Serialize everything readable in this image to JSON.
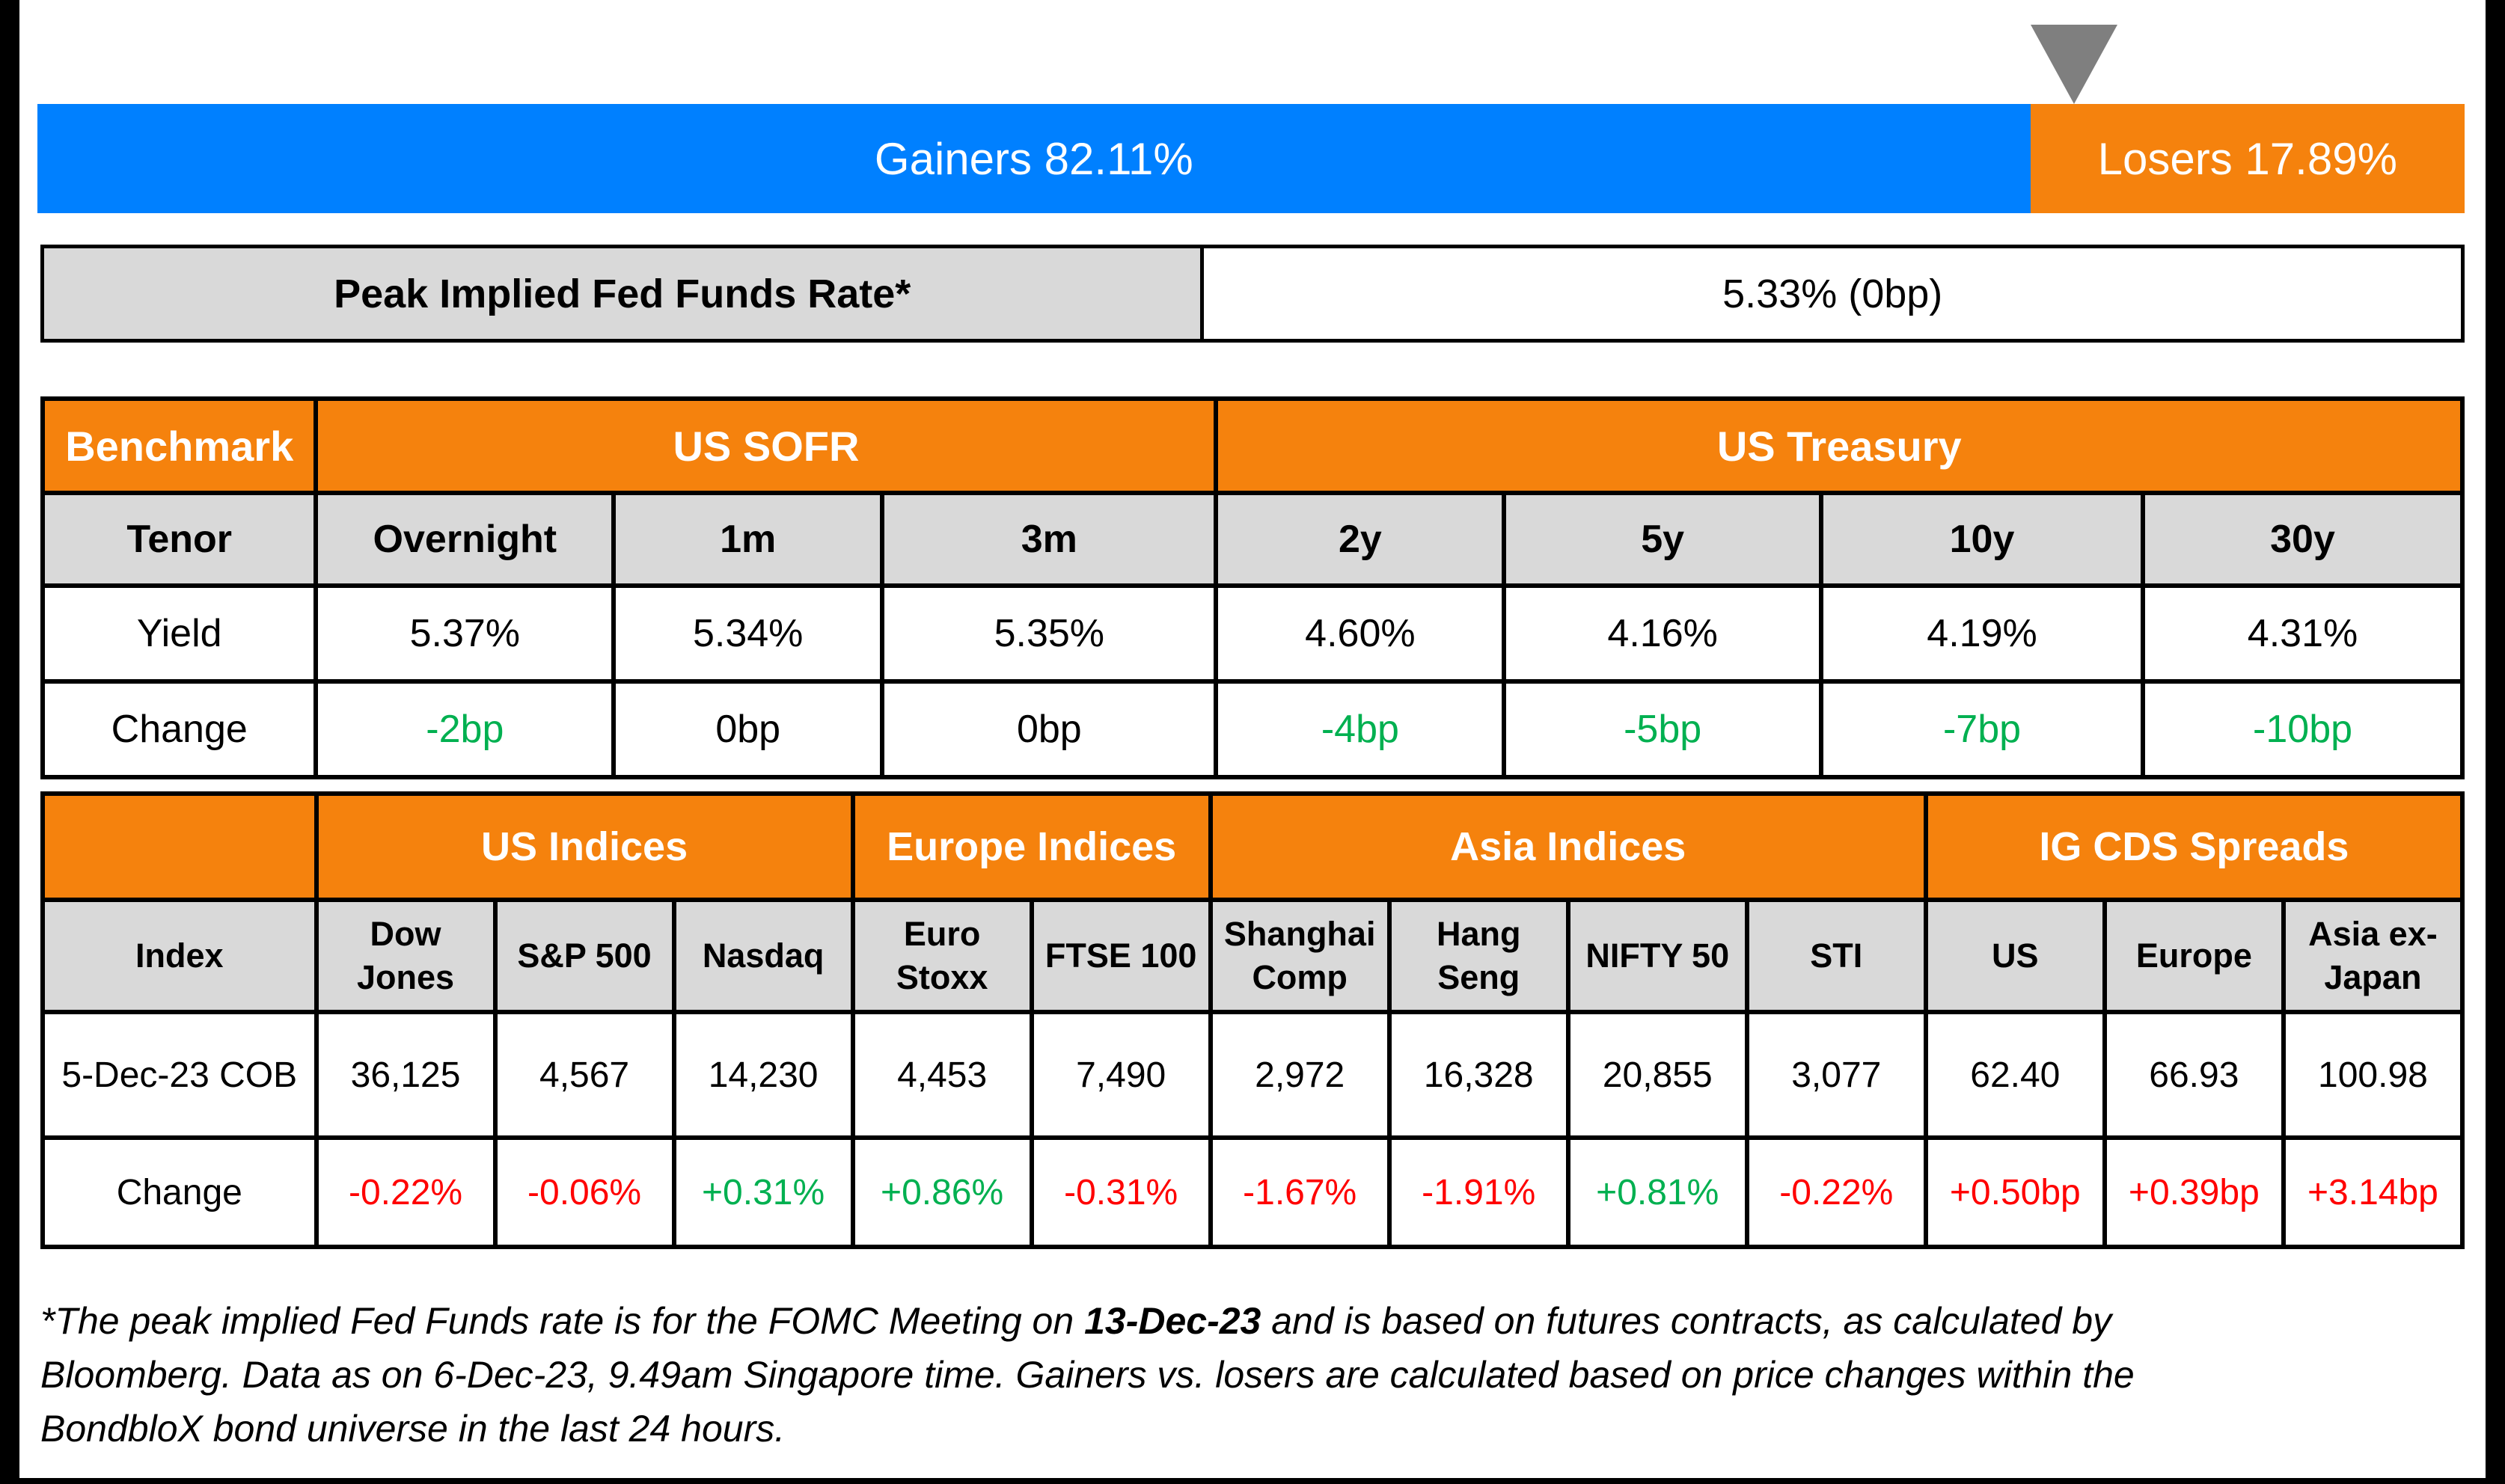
{
  "colors": {
    "blue": "#0080FF",
    "orange": "#F5820D",
    "gray_header": "#D9D9D9",
    "green": "#00B050",
    "red": "#FF0000",
    "triangle_gray": "#7F7F7F"
  },
  "gainers_losers": {
    "gainers_pct": 82.11,
    "losers_pct": 17.89,
    "gainers_label": "Gainers 82.11%",
    "losers_label": "Losers 17.89%"
  },
  "peak_rate": {
    "label": "Peak Implied Fed Funds Rate*",
    "value": "5.33% (0bp)"
  },
  "benchmark_table": {
    "header": {
      "benchmark": "Benchmark",
      "us_sofr": "US SOFR",
      "us_treasury": "US Treasury"
    },
    "row_labels": {
      "tenor": "Tenor",
      "yield": "Yield",
      "change": "Change"
    },
    "columns": [
      {
        "tenor": "Overnight",
        "yield": "5.37%",
        "change": "-2bp",
        "change_color": "green"
      },
      {
        "tenor": "1m",
        "yield": "5.34%",
        "change": "0bp",
        "change_color": "black"
      },
      {
        "tenor": "3m",
        "yield": "5.35%",
        "change": "0bp",
        "change_color": "black"
      },
      {
        "tenor": "2y",
        "yield": "4.60%",
        "change": "-4bp",
        "change_color": "green"
      },
      {
        "tenor": "5y",
        "yield": "4.16%",
        "change": "-5bp",
        "change_color": "green"
      },
      {
        "tenor": "10y",
        "yield": "4.19%",
        "change": "-7bp",
        "change_color": "green"
      },
      {
        "tenor": "30y",
        "yield": "4.31%",
        "change": "-10bp",
        "change_color": "green"
      }
    ]
  },
  "indices_table": {
    "header": {
      "us": "US Indices",
      "europe": "Europe Indices",
      "asia": "Asia Indices",
      "cds": "IG CDS Spreads"
    },
    "row_labels": {
      "index": "Index",
      "date": "5-Dec-23 COB",
      "change": "Change"
    },
    "columns": [
      {
        "name": "Dow Jones",
        "value": "36,125",
        "change": "-0.22%",
        "change_color": "red"
      },
      {
        "name": "S&P 500",
        "value": "4,567",
        "change": "-0.06%",
        "change_color": "red"
      },
      {
        "name": "Nasdaq",
        "value": "14,230",
        "change": "+0.31%",
        "change_color": "green"
      },
      {
        "name": "Euro Stoxx",
        "value": "4,453",
        "change": "+0.86%",
        "change_color": "green"
      },
      {
        "name": "FTSE 100",
        "value": "7,490",
        "change": "-0.31%",
        "change_color": "red"
      },
      {
        "name": "Shanghai Comp",
        "value": "2,972",
        "change": "-1.67%",
        "change_color": "red"
      },
      {
        "name": "Hang Seng",
        "value": "16,328",
        "change": "-1.91%",
        "change_color": "red"
      },
      {
        "name": "NIFTY 50",
        "value": "20,855",
        "change": "+0.81%",
        "change_color": "green"
      },
      {
        "name": "STI",
        "value": "3,077",
        "change": "-0.22%",
        "change_color": "red"
      },
      {
        "name": "US",
        "value": "62.40",
        "change": "+0.50bp",
        "change_color": "red"
      },
      {
        "name": "Europe",
        "value": "66.93",
        "change": "+0.39bp",
        "change_color": "red"
      },
      {
        "name": "Asia ex-Japan",
        "value": "100.98",
        "change": "+3.14bp",
        "change_color": "red"
      }
    ]
  },
  "footnote": {
    "line1_pre": "*The peak implied Fed Funds rate is for the FOMC Meeting on ",
    "line1_bold": "13-Dec-23",
    "line1_post": " and is based on futures contracts, as calculated by",
    "line2": "Bloomberg. Data as on 6-Dec-23, 9.49am Singapore time. Gainers vs. losers are calculated based on price changes within the",
    "line3": "BondbloX bond universe in the last 24 hours."
  },
  "chart_data": [
    {
      "type": "bar",
      "title": "Gainers vs Losers (price changes within the BondbloX bond universe, last 24 hours)",
      "orientation": "horizontal_stacked",
      "series": [
        {
          "name": "Gainers",
          "value": 82.11
        },
        {
          "name": "Losers",
          "value": 17.89
        }
      ],
      "unit": "%",
      "colors": {
        "Gainers": "#0080FF",
        "Losers": "#F5820D"
      },
      "annotation": "gray down-pointing triangle marker at the Gainers/Losers boundary",
      "legend_position": "inside-bar"
    },
    {
      "type": "table",
      "title": "Benchmark",
      "column_groups": {
        "US SOFR": [
          "Overnight",
          "1m",
          "3m"
        ],
        "US Treasury": [
          "2y",
          "5y",
          "10y",
          "30y"
        ]
      },
      "categories": [
        "Overnight",
        "1m",
        "3m",
        "2y",
        "5y",
        "10y",
        "30y"
      ],
      "rows": [
        [
          "Yield",
          "5.37%",
          "5.34%",
          "5.35%",
          "4.60%",
          "4.16%",
          "4.19%",
          "4.31%"
        ],
        [
          "Change",
          "-2bp",
          "0bp",
          "0bp",
          "-4bp",
          "-5bp",
          "-7bp",
          "-10bp"
        ]
      ]
    },
    {
      "type": "table",
      "title": "Indices & IG CDS Spreads",
      "column_groups": {
        "US Indices": [
          "Dow Jones",
          "S&P 500",
          "Nasdaq"
        ],
        "Europe Indices": [
          "Euro Stoxx",
          "FTSE 100"
        ],
        "Asia Indices": [
          "Shanghai Comp",
          "Hang Seng",
          "NIFTY 50",
          "STI"
        ],
        "IG CDS Spreads": [
          "US",
          "Europe",
          "Asia ex-Japan"
        ]
      },
      "categories": [
        "Dow Jones",
        "S&P 500",
        "Nasdaq",
        "Euro Stoxx",
        "FTSE 100",
        "Shanghai Comp",
        "Hang Seng",
        "NIFTY 50",
        "STI",
        "US",
        "Europe",
        "Asia ex-Japan"
      ],
      "rows": [
        [
          "5-Dec-23 COB",
          "36,125",
          "4,567",
          "14,230",
          "4,453",
          "7,490",
          "2,972",
          "16,328",
          "20,855",
          "3,077",
          "62.40",
          "66.93",
          "100.98"
        ],
        [
          "Change",
          "-0.22%",
          "-0.06%",
          "+0.31%",
          "+0.86%",
          "-0.31%",
          "-1.67%",
          "-1.91%",
          "+0.81%",
          "-0.22%",
          "+0.50bp",
          "+0.39bp",
          "+3.14bp"
        ]
      ]
    }
  ]
}
